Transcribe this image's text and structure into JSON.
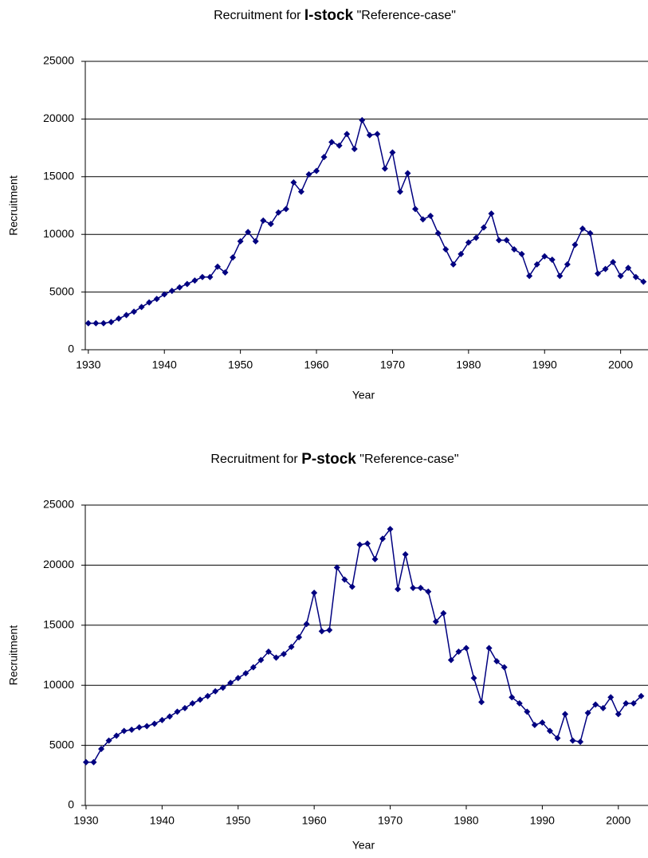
{
  "chart_data": [
    {
      "type": "line",
      "title_prefix": "Recruitment for ",
      "title_stock": "I-stock",
      "title_suffix": " \"Reference-case\"",
      "x_label": "Year",
      "y_label": "Recruitment",
      "x": [
        1930,
        1931,
        1932,
        1933,
        1934,
        1935,
        1936,
        1937,
        1938,
        1939,
        1940,
        1941,
        1942,
        1943,
        1944,
        1945,
        1946,
        1947,
        1948,
        1949,
        1950,
        1951,
        1952,
        1953,
        1954,
        1955,
        1956,
        1957,
        1958,
        1959,
        1960,
        1961,
        1962,
        1963,
        1964,
        1965,
        1966,
        1967,
        1968,
        1969,
        1970,
        1971,
        1972,
        1973,
        1974,
        1975,
        1976,
        1977,
        1978,
        1979,
        1980,
        1981,
        1982,
        1983,
        1984,
        1985,
        1986,
        1987,
        1988,
        1989,
        1990,
        1991,
        1992,
        1993,
        1994,
        1995,
        1996,
        1997,
        1998,
        1999,
        2000,
        2001,
        2002,
        2003
      ],
      "series": [
        {
          "color": "#000080",
          "values": [
            2300,
            2300,
            2300,
            2400,
            2700,
            3000,
            3300,
            3700,
            4100,
            4400,
            4800,
            5100,
            5400,
            5700,
            6000,
            6300,
            6300,
            7200,
            6700,
            8000,
            9400,
            10200,
            9400,
            11200,
            10900,
            11900,
            12200,
            14500,
            13700,
            15200,
            15500,
            16700,
            18000,
            17700,
            18700,
            17400,
            19900,
            18600,
            18700,
            15700,
            17100,
            13700,
            15300,
            12200,
            11300,
            11600,
            10100,
            8700,
            7400,
            8300,
            9300,
            9700,
            10600,
            11800,
            9500,
            9500,
            8700,
            8300,
            6400,
            7400,
            8100,
            7800,
            6400,
            7400,
            9100,
            10500,
            10100,
            6600,
            7000,
            7600,
            6400,
            7100,
            6300,
            5900
          ]
        }
      ],
      "xlim": [
        1929.6,
        2003.6
      ],
      "xticks": [
        1930,
        1940,
        1950,
        1960,
        1970,
        1980,
        1990,
        2000
      ],
      "ylim": [
        0,
        25000
      ],
      "yticks": [
        0,
        5000,
        10000,
        15000,
        20000,
        25000
      ],
      "grid": true
    },
    {
      "type": "line",
      "title_prefix": "Recruitment for ",
      "title_stock": "P-stock",
      "title_suffix": " \"Reference-case\"",
      "x_label": "Year",
      "y_label": "Recruitment",
      "x": [
        1930,
        1931,
        1932,
        1933,
        1934,
        1935,
        1936,
        1937,
        1938,
        1939,
        1940,
        1941,
        1942,
        1943,
        1944,
        1945,
        1946,
        1947,
        1948,
        1949,
        1950,
        1951,
        1952,
        1953,
        1954,
        1955,
        1956,
        1957,
        1958,
        1959,
        1960,
        1961,
        1962,
        1963,
        1964,
        1965,
        1966,
        1967,
        1968,
        1969,
        1970,
        1971,
        1972,
        1973,
        1974,
        1975,
        1976,
        1977,
        1978,
        1979,
        1980,
        1981,
        1982,
        1983,
        1984,
        1985,
        1986,
        1987,
        1988,
        1989,
        1990,
        1991,
        1992,
        1993,
        1994,
        1995,
        1996,
        1997,
        1998,
        1999,
        2000,
        2001,
        2002,
        2003
      ],
      "series": [
        {
          "color": "#000080",
          "values": [
            3600,
            3600,
            4700,
            5400,
            5800,
            6200,
            6300,
            6500,
            6600,
            6800,
            7100,
            7400,
            7800,
            8100,
            8500,
            8800,
            9100,
            9500,
            9800,
            10200,
            10600,
            11000,
            11500,
            12100,
            12800,
            12300,
            12600,
            13200,
            14000,
            15100,
            17700,
            14500,
            14600,
            19800,
            18800,
            18200,
            21700,
            21800,
            20500,
            22200,
            23000,
            18000,
            20900,
            18100,
            18100,
            17800,
            15300,
            16000,
            12100,
            12800,
            13100,
            10600,
            8600,
            13100,
            12000,
            11500,
            9000,
            8500,
            7800,
            6700,
            6900,
            6200,
            5600,
            7600,
            5400,
            5300,
            7700,
            8400,
            8100,
            9000,
            7600,
            8500,
            8500,
            9100
          ]
        }
      ],
      "xlim": [
        1929.9,
        2003.9
      ],
      "xticks": [
        1930,
        1940,
        1950,
        1960,
        1970,
        1980,
        1990,
        2000
      ],
      "ylim": [
        0,
        25000
      ],
      "yticks": [
        0,
        5000,
        10000,
        15000,
        20000,
        25000
      ],
      "grid": true
    }
  ]
}
